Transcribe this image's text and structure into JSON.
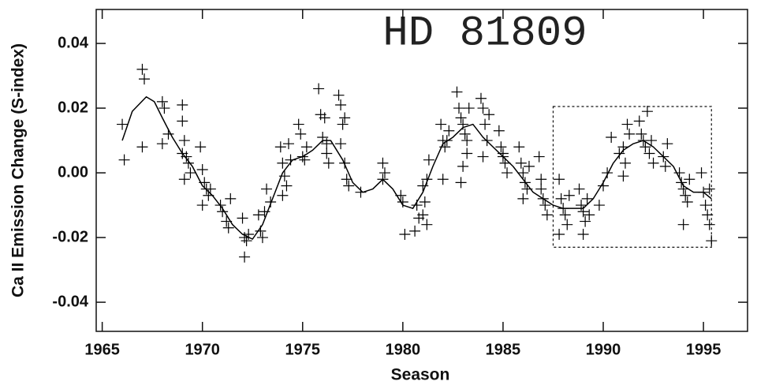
{
  "chart_data": {
    "type": "scatter",
    "annotation": "HD 81809",
    "x_label": "Season",
    "y_label": "Ca II Emission Change (S-index)",
    "xlim": [
      1964.7,
      1997.2
    ],
    "ylim": [
      -0.049,
      0.0505
    ],
    "xticks": [
      1965,
      1970,
      1975,
      1980,
      1985,
      1990,
      1995
    ],
    "yticks": [
      -0.04,
      -0.02,
      {
        "value": 0,
        "label": "0.00"
      },
      0.02,
      0.04
    ],
    "highlight_box": {
      "x": [
        1987.5,
        1995.4
      ],
      "y": [
        -0.023,
        0.0205
      ]
    },
    "series": [
      {
        "type": "scatter",
        "color": "#000000",
        "x": [
          1966.0,
          1966.1,
          1967.0,
          1967.1,
          1967.0,
          1968.0,
          1968.1,
          1968.0,
          1968.3,
          1969.0,
          1969.0,
          1969.1,
          1969.0,
          1969.2,
          1969.3,
          1969.4,
          1969.1,
          1969.9,
          1970.0,
          1970.1,
          1970.2,
          1970.3,
          1970.0,
          1970.4,
          1970.9,
          1971.0,
          1971.2,
          1971.4,
          1971.3,
          1972.0,
          1972.1,
          1972.2,
          1972.1,
          1972.3,
          1972.8,
          1972.9,
          1973.0,
          1973.1,
          1973.2,
          1973.4,
          1973.9,
          1974.0,
          1974.1,
          1974.2,
          1974.0,
          1974.3,
          1974.4,
          1974.8,
          1975.0,
          1975.1,
          1975.2,
          1974.9,
          1975.8,
          1975.9,
          1976.0,
          1976.1,
          1976.2,
          1976.3,
          1976.2,
          1976.8,
          1976.9,
          1977.0,
          1976.9,
          1977.1,
          1977.2,
          1977.3,
          1977.1,
          1977.9,
          1979.0,
          1979.1,
          1979.0,
          1979.9,
          1980.0,
          1980.1,
          1980.6,
          1980.7,
          1980.8,
          1981.0,
          1981.1,
          1981.0,
          1981.2,
          1981.3,
          1981.2,
          1981.9,
          1982.0,
          1982.1,
          1982.2,
          1982.3,
          1982.0,
          1982.7,
          1982.8,
          1982.9,
          1983.0,
          1983.1,
          1983.2,
          1983.0,
          1982.9,
          1983.3,
          1983.2,
          1983.9,
          1984.0,
          1984.1,
          1984.2,
          1984.0,
          1984.3,
          1984.8,
          1984.9,
          1985.0,
          1985.1,
          1985.2,
          1985.0,
          1985.8,
          1985.9,
          1986.0,
          1986.1,
          1986.2,
          1986.0,
          1986.3,
          1986.8,
          1986.9,
          1987.0,
          1987.1,
          1987.2,
          1986.9,
          1987.8,
          1987.9,
          1988.0,
          1988.1,
          1988.2,
          1987.8,
          1988.3,
          1988.8,
          1988.9,
          1989.0,
          1989.1,
          1989.0,
          1989.2,
          1989.3,
          1989.8,
          1990.0,
          1990.2,
          1990.4,
          1990.8,
          1991.0,
          1991.1,
          1991.2,
          1991.3,
          1991.0,
          1991.8,
          1991.9,
          1992.0,
          1992.1,
          1992.2,
          1992.3,
          1992.5,
          1992.4,
          1993.0,
          1993.1,
          1993.2,
          1993.8,
          1993.9,
          1994.0,
          1994.1,
          1994.2,
          1994.0,
          1994.3,
          1994.9,
          1995.0,
          1995.1,
          1995.2,
          1995.3,
          1995.4,
          1995.3
        ],
        "values": [
          0.015,
          0.004,
          0.032,
          0.029,
          0.008,
          0.022,
          0.02,
          0.009,
          0.012,
          0.021,
          0.016,
          0.01,
          0.006,
          0.005,
          0.003,
          0.0,
          -0.002,
          0.008,
          0.001,
          -0.003,
          -0.005,
          -0.007,
          -0.01,
          -0.005,
          -0.01,
          -0.012,
          -0.015,
          -0.008,
          -0.017,
          -0.014,
          -0.02,
          -0.021,
          -0.026,
          -0.019,
          -0.013,
          -0.018,
          -0.02,
          -0.012,
          -0.005,
          -0.009,
          0.008,
          0.003,
          -0.001,
          -0.004,
          -0.007,
          0.009,
          0.004,
          0.015,
          0.005,
          0.004,
          0.008,
          0.012,
          0.026,
          0.018,
          0.011,
          0.017,
          0.009,
          0.003,
          0.006,
          0.024,
          0.021,
          0.015,
          0.009,
          0.003,
          -0.002,
          -0.004,
          0.017,
          -0.006,
          0.003,
          0.0,
          -0.002,
          -0.007,
          -0.009,
          -0.019,
          -0.018,
          -0.01,
          -0.014,
          -0.004,
          -0.009,
          -0.013,
          -0.002,
          0.004,
          -0.016,
          0.015,
          0.01,
          0.008,
          0.01,
          0.013,
          -0.002,
          0.025,
          0.02,
          0.017,
          0.015,
          0.012,
          0.006,
          0.002,
          -0.003,
          0.02,
          0.01,
          0.023,
          0.02,
          0.015,
          0.01,
          0.005,
          0.018,
          0.013,
          0.008,
          0.005,
          0.003,
          0.0,
          0.006,
          0.008,
          0.003,
          0.0,
          -0.003,
          -0.005,
          -0.008,
          0.002,
          0.005,
          -0.005,
          -0.008,
          -0.01,
          -0.013,
          -0.002,
          -0.002,
          -0.008,
          -0.011,
          -0.013,
          -0.016,
          -0.019,
          -0.007,
          -0.005,
          -0.01,
          -0.012,
          -0.015,
          -0.019,
          -0.008,
          -0.013,
          -0.01,
          -0.004,
          0.0,
          0.011,
          0.006,
          0.008,
          0.003,
          0.015,
          0.012,
          -0.001,
          0.016,
          0.012,
          0.01,
          0.008,
          0.019,
          0.006,
          0.003,
          0.01,
          0.005,
          0.002,
          0.009,
          0.0,
          -0.003,
          -0.005,
          -0.007,
          -0.009,
          -0.016,
          -0.002,
          0.0,
          -0.006,
          -0.01,
          -0.013,
          -0.016,
          -0.021,
          -0.005
        ]
      },
      {
        "type": "line",
        "color": "#000000",
        "x": [
          1966.0,
          1966.5,
          1967.2,
          1967.6,
          1968.0,
          1968.5,
          1969.0,
          1969.5,
          1970.0,
          1970.5,
          1971.0,
          1971.5,
          1972.0,
          1972.5,
          1973.0,
          1973.5,
          1974.0,
          1974.5,
          1975.0,
          1975.5,
          1976.0,
          1976.4,
          1977.0,
          1977.5,
          1978.0,
          1978.5,
          1979.0,
          1979.5,
          1980.0,
          1980.5,
          1981.0,
          1981.5,
          1982.0,
          1982.5,
          1983.0,
          1983.5,
          1984.0,
          1984.5,
          1985.0,
          1985.5,
          1986.0,
          1986.5,
          1987.0,
          1987.5,
          1988.0,
          1988.5,
          1989.0,
          1989.5,
          1990.0,
          1990.5,
          1991.0,
          1991.5,
          1992.0,
          1992.5,
          1993.0,
          1993.5,
          1994.0,
          1994.5,
          1995.0,
          1995.4
        ],
        "values": [
          0.01,
          0.019,
          0.0235,
          0.022,
          0.017,
          0.011,
          0.006,
          0.002,
          -0.004,
          -0.007,
          -0.011,
          -0.016,
          -0.019,
          -0.0205,
          -0.016,
          -0.008,
          0.0,
          0.004,
          0.005,
          0.007,
          0.01,
          0.01,
          0.004,
          -0.003,
          -0.006,
          -0.005,
          -0.002,
          -0.005,
          -0.01,
          -0.011,
          -0.006,
          0.002,
          0.009,
          0.011,
          0.014,
          0.015,
          0.011,
          0.008,
          0.005,
          0.002,
          -0.002,
          -0.006,
          -0.008,
          -0.01,
          -0.011,
          -0.011,
          -0.011,
          -0.008,
          -0.003,
          0.003,
          0.007,
          0.009,
          0.01,
          0.008,
          0.005,
          0.002,
          -0.004,
          -0.006,
          -0.006,
          -0.008
        ]
      }
    ]
  }
}
